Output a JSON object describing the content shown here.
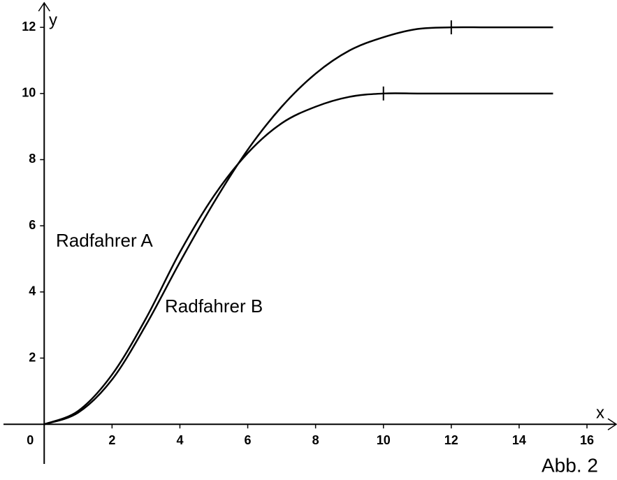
{
  "chart_data": {
    "type": "line",
    "x": [
      0,
      1,
      2,
      3,
      4,
      5,
      6,
      7,
      8,
      9,
      10,
      11,
      12,
      13,
      14,
      15
    ],
    "series": [
      {
        "name": "Radfahrer A",
        "color": "#000000",
        "values": [
          0,
          0.4,
          1.5,
          3.2,
          5.2,
          6.9,
          8.2,
          9.1,
          9.6,
          9.9,
          10,
          10,
          10,
          10,
          10,
          10
        ]
      },
      {
        "name": "Radfahrer B",
        "color": "#000000",
        "values": [
          0,
          0.35,
          1.35,
          3.0,
          4.9,
          6.7,
          8.3,
          9.6,
          10.6,
          11.3,
          11.7,
          11.95,
          12,
          12,
          12,
          12
        ]
      }
    ],
    "xlabel": "x",
    "ylabel": "y",
    "xlim": [
      -1.2,
      16.7
    ],
    "ylim": [
      -1.2,
      12.7
    ],
    "xticks": [
      0,
      2,
      4,
      6,
      8,
      10,
      12,
      14,
      16
    ],
    "yticks": [
      2,
      4,
      6,
      8,
      10,
      12
    ],
    "annotation": "Abb. 2"
  }
}
